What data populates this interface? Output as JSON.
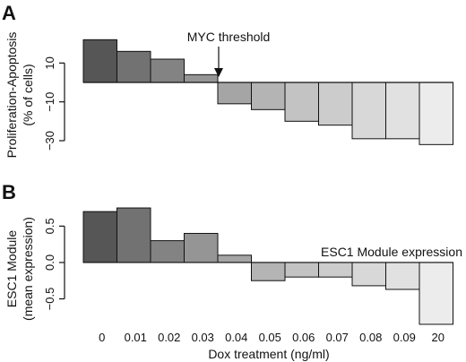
{
  "chart_data": [
    {
      "panel": "A",
      "type": "bar",
      "categories": [
        "0",
        "0.01",
        "0.02",
        "0.03",
        "0.04",
        "0.05",
        "0.06",
        "0.07",
        "0.08",
        "0.09",
        "20"
      ],
      "values": [
        22,
        16,
        12,
        4,
        -11,
        -14,
        -20,
        -22,
        -29,
        -29,
        -32
      ],
      "ylabel": [
        "Proliferation-Apoptosis",
        "(% of cells)"
      ],
      "yticks": [
        10,
        -10,
        -30
      ],
      "ylim": [
        -36,
        24
      ],
      "annotation": "MYC threshold",
      "annotation_index": 3.5,
      "colors": [
        "#565656",
        "#727272",
        "#838383",
        "#959595",
        "#a5a5a5",
        "#b4b4b4",
        "#c3c3c3",
        "#cccccc",
        "#d8d8d8",
        "#e1e1e1",
        "#ececec"
      ]
    },
    {
      "panel": "B",
      "type": "bar",
      "categories": [
        "0",
        "0.01",
        "0.02",
        "0.03",
        "0.04",
        "0.05",
        "0.06",
        "0.07",
        "0.08",
        "0.09",
        "20"
      ],
      "values": [
        0.7,
        0.75,
        0.3,
        0.4,
        0.1,
        -0.25,
        -0.2,
        -0.2,
        -0.32,
        -0.37,
        -0.85
      ],
      "ylabel": [
        "ESC1 Module",
        "(mean expression)"
      ],
      "yticks": [
        0.5,
        0.0,
        -0.5
      ],
      "ylim": [
        -0.9,
        0.8
      ],
      "annotation": "ESC1 Module expression",
      "colors": [
        "#565656",
        "#727272",
        "#838383",
        "#959595",
        "#a5a5a5",
        "#b4b4b4",
        "#c3c3c3",
        "#cccccc",
        "#d8d8d8",
        "#e1e1e1",
        "#ececec"
      ]
    }
  ],
  "xlabel": "Dox treatment (ng/ml)"
}
